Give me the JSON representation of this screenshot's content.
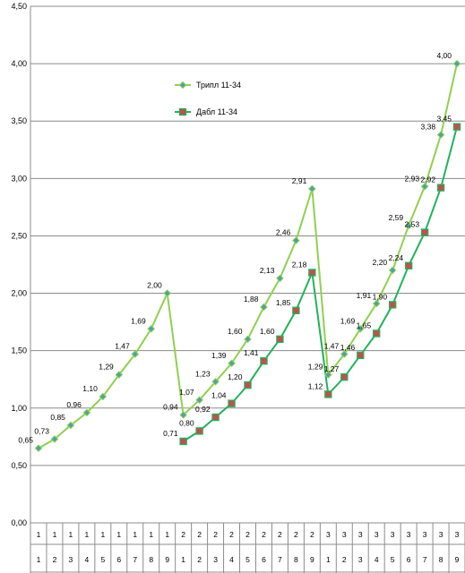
{
  "chart_data": {
    "type": "line",
    "ylim": [
      0,
      4.5
    ],
    "ytick_step": 0.5,
    "grid": "horizontal",
    "legend_position": "top-left-inside",
    "yticks": [
      "0,00",
      "0,50",
      "1,00",
      "1,50",
      "2,00",
      "2,50",
      "3,00",
      "3,50",
      "4,00",
      "4,50"
    ],
    "categories_row1": [
      "1",
      "1",
      "1",
      "1",
      "1",
      "1",
      "1",
      "1",
      "1",
      "2",
      "2",
      "2",
      "2",
      "2",
      "2",
      "2",
      "2",
      "2",
      "3",
      "3",
      "3",
      "3",
      "3",
      "3",
      "3",
      "3",
      "3"
    ],
    "categories_row2": [
      "1",
      "2",
      "3",
      "4",
      "5",
      "6",
      "7",
      "8",
      "9",
      "1",
      "2",
      "3",
      "4",
      "5",
      "6",
      "7",
      "8",
      "9",
      "1",
      "2",
      "3",
      "4",
      "5",
      "6",
      "7",
      "8",
      "9"
    ],
    "series": [
      {
        "name": "Трипл 11-34",
        "color": "#8fd14f",
        "marker_fill": "#4f9fb0",
        "marker": "diamond",
        "values": [
          0.65,
          0.73,
          0.85,
          0.96,
          1.1,
          1.29,
          1.47,
          1.69,
          2.0,
          0.94,
          1.07,
          1.23,
          1.39,
          1.6,
          1.88,
          2.13,
          2.46,
          2.91,
          1.29,
          1.47,
          1.69,
          1.91,
          2.2,
          2.59,
          2.93,
          3.38,
          4.0
        ],
        "labels": [
          "0,65",
          "0,73",
          "0,85",
          "0,96",
          "1,10",
          "1,29",
          "1,47",
          "1,69",
          "2,00",
          "0,94",
          "1,07",
          "1,23",
          "1,39",
          "1,60",
          "1,88",
          "2,13",
          "2,46",
          "2,91",
          "1,29",
          "1,47",
          "1,69",
          "1,91",
          "2,20",
          "2,59",
          "2,93",
          "3,38",
          "4,00"
        ]
      },
      {
        "name": "Дабл 11-34",
        "color": "#22b35a",
        "marker_fill": "#c0504d",
        "marker": "square",
        "start_index": 9,
        "values": [
          0.71,
          0.8,
          0.92,
          1.04,
          1.2,
          1.41,
          1.6,
          1.85,
          2.18,
          1.12,
          1.27,
          1.46,
          1.65,
          1.9,
          2.24,
          2.53,
          2.92,
          3.45
        ],
        "labels": [
          "0,71",
          "0,80",
          "0,92",
          "1,04",
          "1,20",
          "1,41",
          "1,60",
          "1,85",
          "2,18",
          "1,12",
          "1,27",
          "1,46",
          "1,65",
          "1,90",
          "2,24",
          "2,53",
          "2,92",
          "3,45"
        ]
      }
    ]
  }
}
